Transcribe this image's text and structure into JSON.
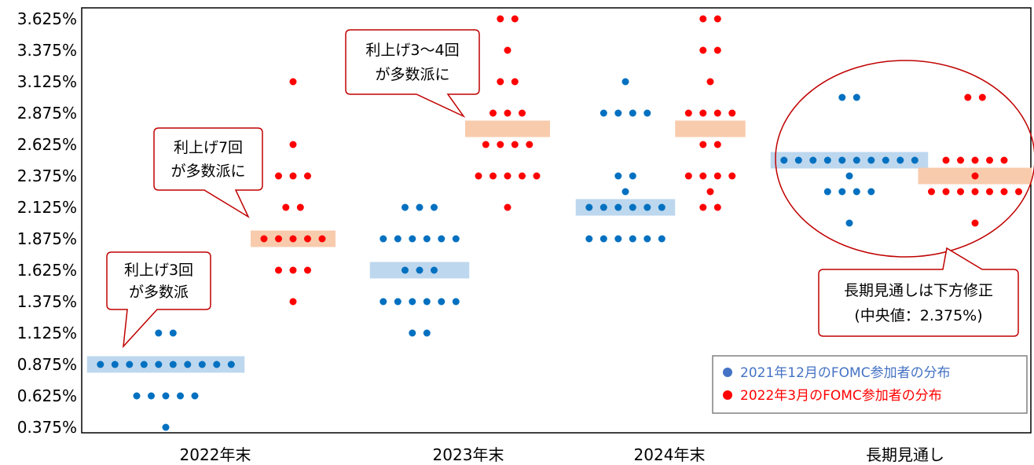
{
  "chart_data": {
    "type": "scatter",
    "y_ticks": [
      "3.625%",
      "3.375%",
      "3.125%",
      "2.875%",
      "2.625%",
      "2.375%",
      "2.125%",
      "1.875%",
      "1.625%",
      "1.375%",
      "1.125%",
      "0.875%",
      "0.625%",
      "0.375%"
    ],
    "y_values": [
      3.625,
      3.375,
      3.125,
      2.875,
      2.625,
      2.375,
      2.125,
      1.875,
      1.625,
      1.375,
      1.125,
      0.875,
      0.625,
      0.375
    ],
    "ylim": [
      0.375,
      3.625
    ],
    "categories": [
      "2022年末",
      "2023年末",
      "2024年末",
      "長期見通し"
    ],
    "series": [
      {
        "name": "2021年12月のFOMC参加者の分布",
        "color": "#0070C0",
        "median_color": "#BDD7EE",
        "points": [
          {
            "category": "2022年末",
            "rows": [
              [
                1.125,
                2
              ],
              [
                0.875,
                10
              ],
              [
                0.625,
                5
              ],
              [
                0.375,
                1
              ]
            ],
            "median": 0.875
          },
          {
            "category": "2023年末",
            "rows": [
              [
                2.125,
                3
              ],
              [
                1.875,
                6
              ],
              [
                1.625,
                3
              ],
              [
                1.375,
                6
              ],
              [
                1.125,
                2
              ]
            ],
            "median": 1.625
          },
          {
            "category": "2024年末",
            "rows": [
              [
                3.125,
                1
              ],
              [
                2.875,
                4
              ],
              [
                2.375,
                2
              ],
              [
                2.25,
                1
              ],
              [
                2.125,
                6
              ],
              [
                1.875,
                6
              ]
            ],
            "median": 2.125
          },
          {
            "category": "長期見通し",
            "rows": [
              [
                3.0,
                2
              ],
              [
                2.5,
                10
              ],
              [
                2.375,
                1
              ],
              [
                2.25,
                4
              ],
              [
                2.0,
                1
              ]
            ],
            "median": 2.5
          }
        ]
      },
      {
        "name": "2022年3月のFOMC参加者の分布",
        "color": "#FF0000",
        "median_color": "#F8CBAD",
        "points": [
          {
            "category": "2022年末",
            "rows": [
              [
                3.125,
                1
              ],
              [
                2.625,
                1
              ],
              [
                2.375,
                3
              ],
              [
                2.125,
                2
              ],
              [
                1.875,
                5
              ],
              [
                1.625,
                3
              ],
              [
                1.375,
                1
              ]
            ],
            "median": 1.875
          },
          {
            "category": "2023年末",
            "rows": [
              [
                3.625,
                2
              ],
              [
                3.375,
                1
              ],
              [
                3.125,
                2
              ],
              [
                2.875,
                3
              ],
              [
                2.625,
                4
              ],
              [
                2.375,
                5
              ],
              [
                2.125,
                1
              ]
            ],
            "median": 2.75
          },
          {
            "category": "2024年末",
            "rows": [
              [
                3.625,
                2
              ],
              [
                3.375,
                2
              ],
              [
                3.125,
                1
              ],
              [
                2.875,
                4
              ],
              [
                2.625,
                2
              ],
              [
                2.375,
                4
              ],
              [
                2.25,
                1
              ],
              [
                2.125,
                2
              ]
            ],
            "median": 2.75
          },
          {
            "category": "長期見通し",
            "rows": [
              [
                3.0,
                2
              ],
              [
                2.5,
                5
              ],
              [
                2.375,
                1
              ],
              [
                2.25,
                7
              ],
              [
                2.0,
                1
              ]
            ],
            "median": 2.375
          }
        ]
      }
    ],
    "legend": {
      "placement": "bottom-right",
      "entries": [
        "2021年12月のFOMC参加者の分布",
        "2022年3月のFOMC参加者の分布"
      ]
    },
    "annotations": [
      {
        "id": "c1",
        "lines": [
          "利上げ3回",
          "が多数派"
        ]
      },
      {
        "id": "c2",
        "lines": [
          "利上げ7回",
          "が多数派に"
        ]
      },
      {
        "id": "c3",
        "lines": [
          "利上げ3〜4回",
          "が多数派に"
        ]
      },
      {
        "id": "c4",
        "lines": [
          "長期見通しは下方修正",
          "(中央値：2.375%)"
        ]
      }
    ]
  }
}
